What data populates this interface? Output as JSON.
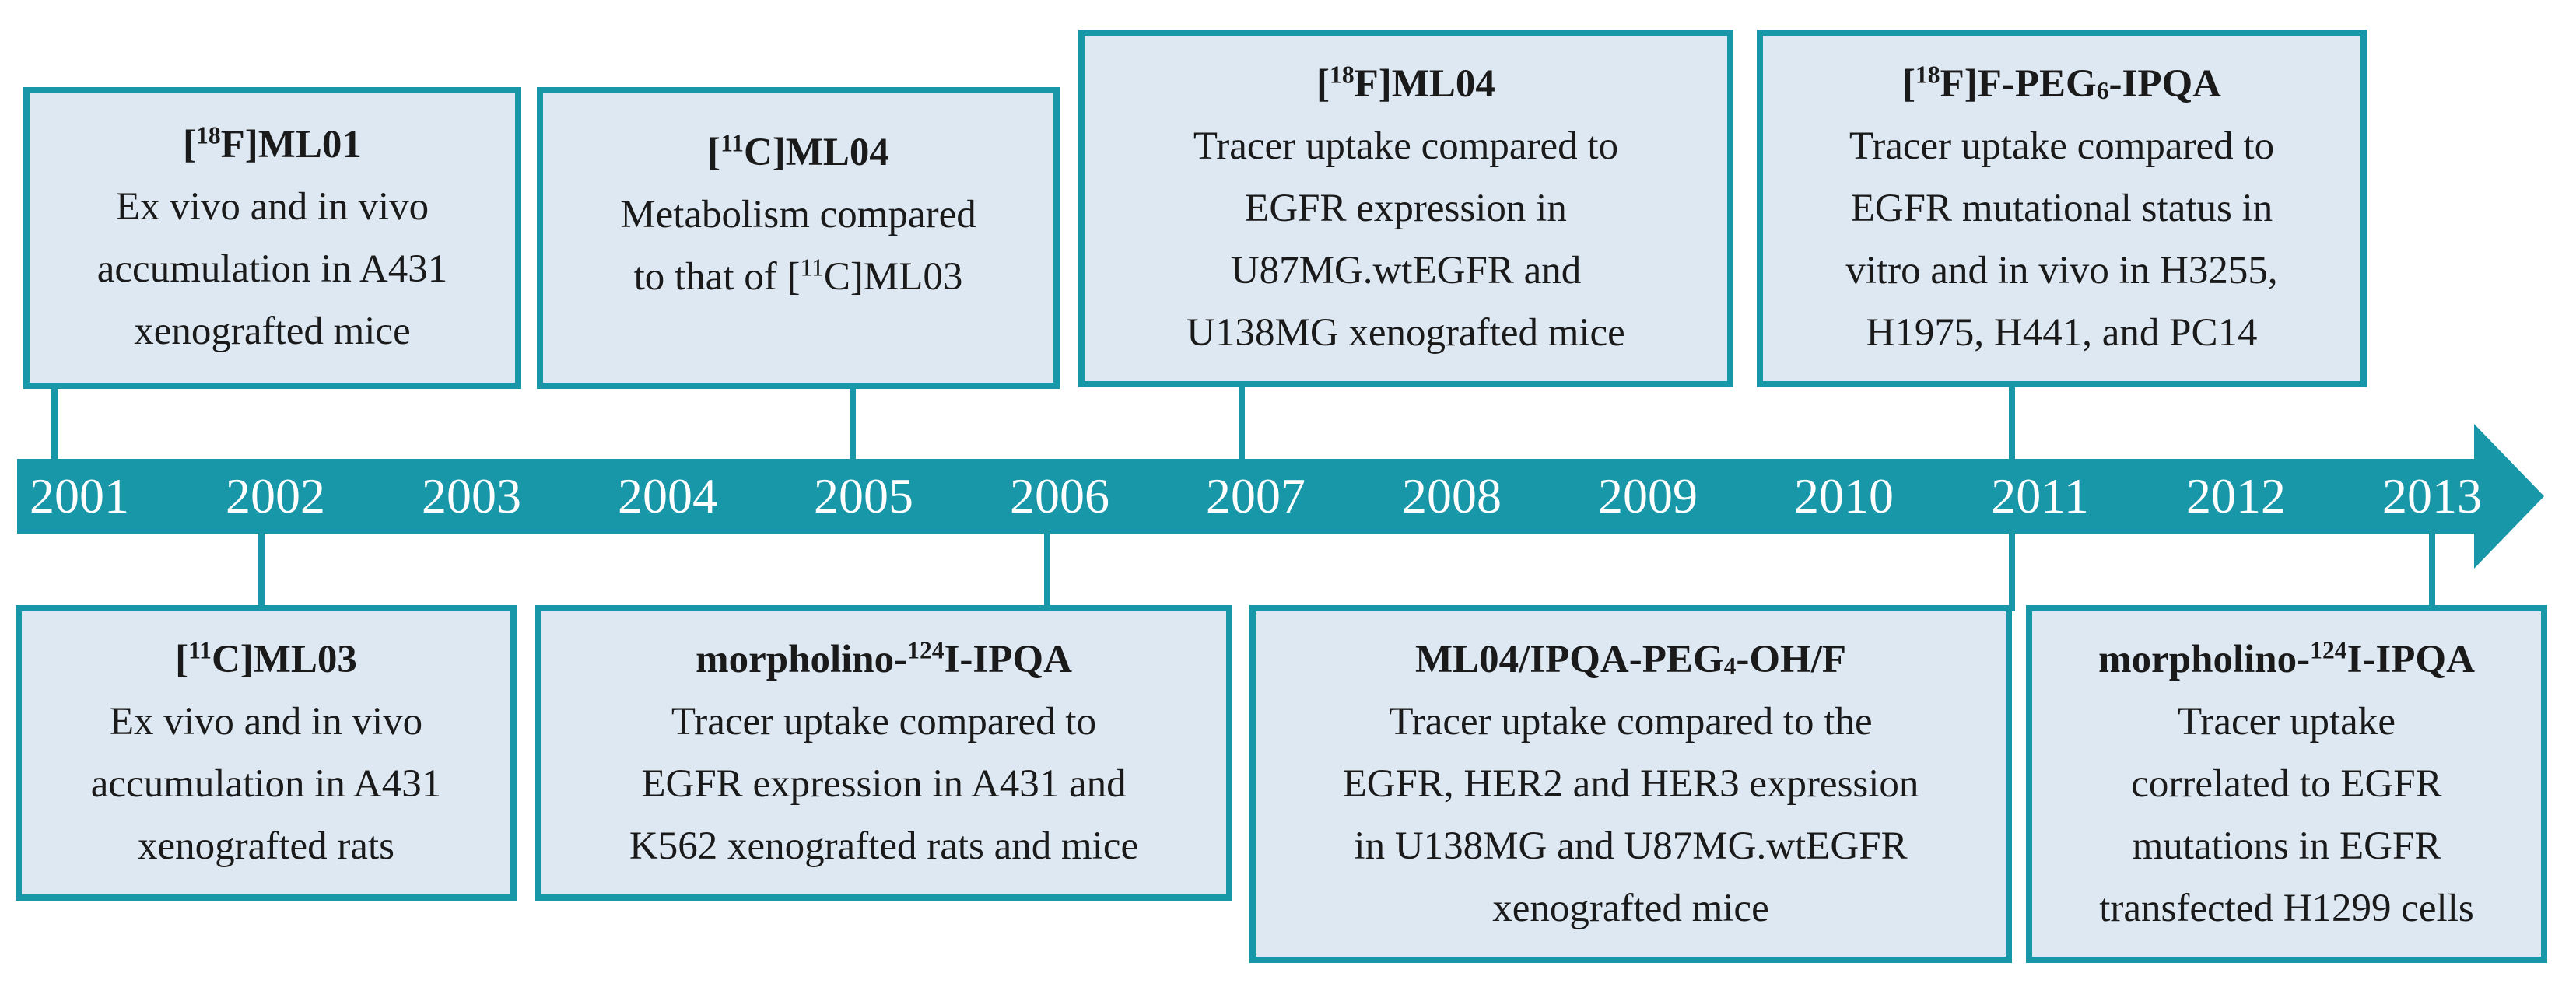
{
  "colors": {
    "accent": "#1897a9",
    "box_fill": "#dde8f3",
    "year_text": "#ffffff"
  },
  "years": [
    "2001",
    "2002",
    "2003",
    "2004",
    "2005",
    "2006",
    "2007",
    "2008",
    "2009",
    "2010",
    "2011",
    "2012",
    "2013"
  ],
  "events": [
    {
      "id": "ml01",
      "year": "2001",
      "side": "top",
      "title": {
        "pre": "[",
        "sup": "18",
        "post": "F]ML01"
      },
      "lines": [
        "Ex vivo and in vivo",
        "accumulation in A431",
        "xenografted mice"
      ]
    },
    {
      "id": "ml03",
      "year": "2002",
      "side": "bottom",
      "title": {
        "pre": "[",
        "sup": "11",
        "post": "C]ML03"
      },
      "lines": [
        "Ex vivo and in vivo",
        "accumulation in A431",
        "xenografted rats"
      ]
    },
    {
      "id": "ml04-c11",
      "year": "2005",
      "side": "top",
      "title": {
        "pre": "[",
        "sup": "11",
        "post": "C]ML04"
      },
      "lines": [
        "Metabolism compared"
      ],
      "rich_line": {
        "pre": "to that of [",
        "sup": "11",
        "post": "C]ML03"
      }
    },
    {
      "id": "morpholino-2006",
      "year": "2006",
      "side": "bottom",
      "title": {
        "pre": "morpholino-",
        "sup": "124",
        "post": "I-IPQA"
      },
      "lines": [
        "Tracer uptake compared to",
        "EGFR expression in A431 and",
        "K562 xenografted rats and mice"
      ]
    },
    {
      "id": "ml04-f18",
      "year": "2007",
      "side": "top",
      "title": {
        "pre": "[",
        "sup": "18",
        "post": "F]ML04"
      },
      "lines": [
        "Tracer uptake compared to",
        "EGFR expression in",
        "U87MG.wtEGFR and",
        "U138MG xenografted mice"
      ]
    },
    {
      "id": "ml04-peg4",
      "year": "2011",
      "side": "bottom",
      "title": {
        "pre": "ML04/IPQA-PEG",
        "sub": "4",
        "post": "-OH/F"
      },
      "lines": [
        "Tracer uptake compared to the",
        "EGFR, HER2 and HER3 expression",
        "in U138MG and U87MG.wtEGFR",
        "xenografted mice"
      ]
    },
    {
      "id": "peg6",
      "year": "2011",
      "side": "top",
      "title": {
        "pre": "[",
        "sup": "18",
        "mid": "F]F-PEG",
        "sub": "6",
        "post": "-IPQA"
      },
      "lines": [
        "Tracer uptake compared to",
        "EGFR mutational status in",
        "vitro and in vivo in H3255,",
        "H1975, H441, and PC14"
      ]
    },
    {
      "id": "morpholino-2013",
      "year": "2013",
      "side": "bottom",
      "title": {
        "pre": "morpholino-",
        "sup": "124",
        "post": "I-IPQA"
      },
      "lines": [
        "Tracer uptake",
        "correlated to EGFR",
        "mutations in EGFR",
        "transfected H1299 cells"
      ]
    }
  ]
}
